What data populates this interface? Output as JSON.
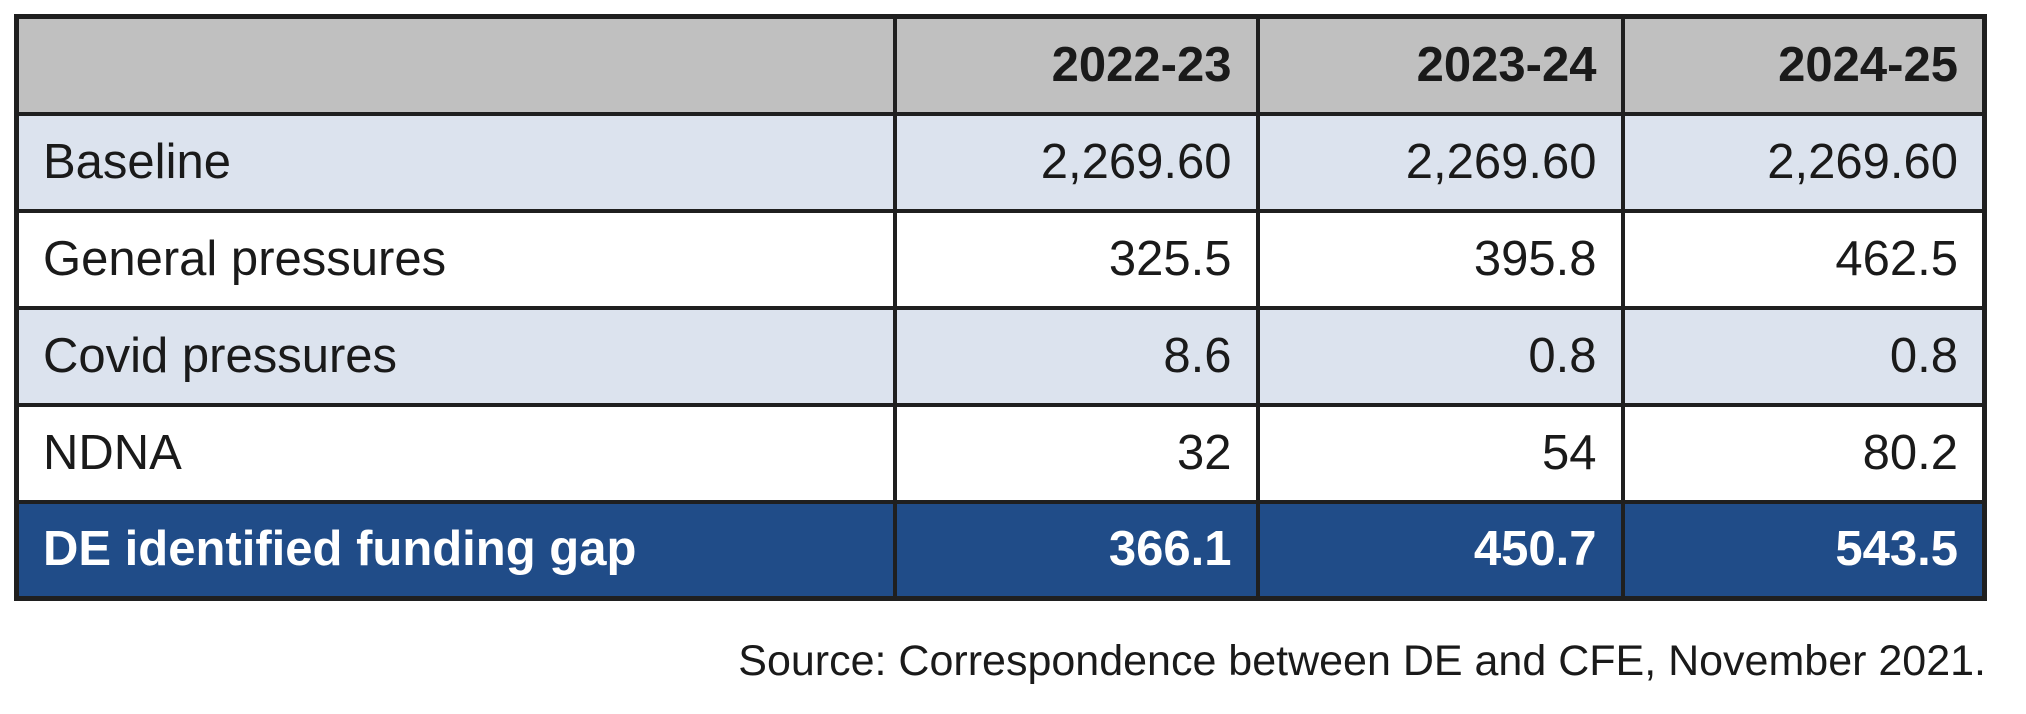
{
  "table": {
    "columns": [
      "",
      "2022-23",
      "2023-24",
      "2024-25"
    ],
    "rows": [
      {
        "label": "Baseline",
        "values": [
          "2,269.60",
          "2,269.60",
          "2,269.60"
        ],
        "stripe": true,
        "highlight": false
      },
      {
        "label": "General pressures",
        "values": [
          "325.5",
          "395.8",
          "462.5"
        ],
        "stripe": false,
        "highlight": false
      },
      {
        "label": "Covid pressures",
        "values": [
          "8.6",
          "0.8",
          "0.8"
        ],
        "stripe": true,
        "highlight": false
      },
      {
        "label": "NDNA",
        "values": [
          "32",
          "54",
          "80.2"
        ],
        "stripe": false,
        "highlight": false
      },
      {
        "label": "DE identified funding gap",
        "values": [
          "366.1",
          "450.7",
          "543.5"
        ],
        "stripe": false,
        "highlight": true
      }
    ]
  },
  "source_note": "Source: Correspondence between DE and CFE, November 2021.",
  "colors": {
    "header_bg": "#c0c0c0",
    "stripe_bg": "#dce3ee",
    "highlight_bg": "#204c88",
    "highlight_text": "#ffffff",
    "border_color": "#1f1f1f",
    "text_color": "#1a1a1a"
  }
}
